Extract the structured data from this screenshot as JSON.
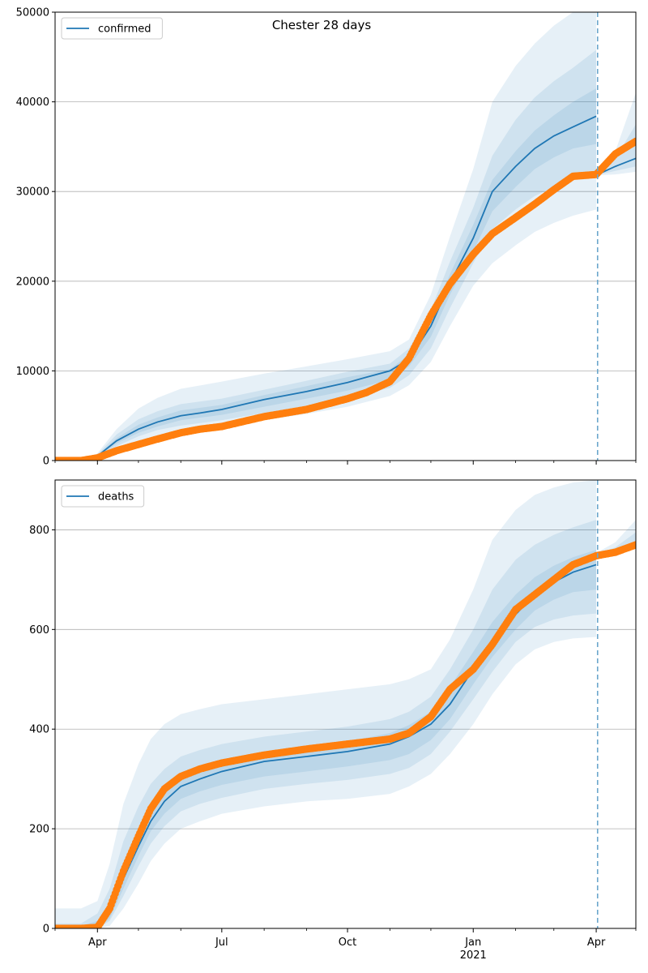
{
  "figure": {
    "title": "Chester 28 days"
  },
  "colors": {
    "model": "#1f77b4",
    "observed": "#ff7f0e",
    "band": "#1f77b4",
    "grid": "#b0b0b0",
    "cutoff": "#6aa6cc"
  },
  "chart_data": [
    {
      "type": "line",
      "legend": {
        "label": "confirmed",
        "placement": "top-left"
      },
      "grid": "y",
      "title": "Chester 28 days",
      "xlabel": "",
      "ylabel": "",
      "xlim": [
        "2020-03-01",
        "2021-04-30"
      ],
      "ylim": [
        0,
        50000
      ],
      "x_ticks": [
        {
          "date": "2020-04-01",
          "label": "Apr"
        },
        {
          "date": "2020-07-01",
          "label": "Jul"
        },
        {
          "date": "2020-10-01",
          "label": "Oct"
        },
        {
          "date": "2021-01-01",
          "label": "Jan",
          "sublabel": "2021"
        },
        {
          "date": "2021-04-01",
          "label": "Apr"
        }
      ],
      "y_ticks": [
        0,
        10000,
        20000,
        30000,
        40000,
        50000
      ],
      "y_tick_labels": [
        "0",
        "10000",
        "20000",
        "30000",
        "40000",
        "50000"
      ],
      "cutoff_date": "2021-04-02",
      "series": [
        {
          "name": "confirmed",
          "role": "model",
          "x": [
            "2020-03-01",
            "2020-03-20",
            "2020-04-01",
            "2020-04-15",
            "2020-05-01",
            "2020-05-15",
            "2020-06-01",
            "2020-06-15",
            "2020-07-01",
            "2020-08-01",
            "2020-09-01",
            "2020-10-01",
            "2020-10-15",
            "2020-11-01",
            "2020-11-15",
            "2020-12-01",
            "2020-12-15",
            "2021-01-01",
            "2021-01-15",
            "2021-02-01",
            "2021-02-15",
            "2021-03-01",
            "2021-03-15",
            "2021-04-01"
          ],
          "values": [
            0,
            0,
            500,
            2200,
            3500,
            4300,
            5000,
            5300,
            5700,
            6800,
            7700,
            8700,
            9300,
            10000,
            11300,
            15000,
            19800,
            24800,
            30000,
            32800,
            34800,
            36200,
            37200,
            38400
          ]
        },
        {
          "name": "forecast",
          "role": "model",
          "x": [
            "2021-04-02",
            "2021-04-15",
            "2021-04-30"
          ],
          "values": [
            31900,
            32800,
            33700
          ]
        },
        {
          "name": "observed confirmed",
          "role": "observed",
          "x": [
            "2020-03-01",
            "2020-03-20",
            "2020-04-01",
            "2020-04-15",
            "2020-05-01",
            "2020-05-15",
            "2020-06-01",
            "2020-06-15",
            "2020-07-01",
            "2020-08-01",
            "2020-09-01",
            "2020-10-01",
            "2020-10-15",
            "2020-11-01",
            "2020-11-15",
            "2020-12-01",
            "2020-12-15",
            "2021-01-01",
            "2021-01-15",
            "2021-02-01",
            "2021-02-15",
            "2021-03-01",
            "2021-03-15",
            "2021-04-01",
            "2021-04-15",
            "2021-04-30"
          ],
          "values": [
            0,
            0,
            300,
            1100,
            1800,
            2400,
            3100,
            3500,
            3800,
            4900,
            5700,
            6900,
            7600,
            8800,
            11400,
            16200,
            19700,
            23000,
            25300,
            27100,
            28600,
            30200,
            31700,
            31900,
            34200,
            35600
          ]
        }
      ],
      "bands": [
        {
          "name": "outer",
          "x": [
            "2020-03-01",
            "2020-03-20",
            "2020-04-01",
            "2020-04-15",
            "2020-05-01",
            "2020-05-15",
            "2020-06-01",
            "2020-07-01",
            "2020-08-01",
            "2020-09-01",
            "2020-10-01",
            "2020-11-01",
            "2020-11-15",
            "2020-12-01",
            "2020-12-15",
            "2021-01-01",
            "2021-01-15",
            "2021-02-01",
            "2021-02-15",
            "2021-03-01",
            "2021-03-15",
            "2021-04-01"
          ],
          "lower": [
            0,
            0,
            0,
            1200,
            2200,
            2800,
            3200,
            3800,
            4500,
            5200,
            6000,
            7200,
            8400,
            11000,
            15000,
            19500,
            22000,
            24000,
            25500,
            26500,
            27300,
            28000
          ],
          "upper": [
            0,
            0,
            800,
            3500,
            5800,
            7000,
            8000,
            8800,
            9700,
            10500,
            11300,
            12200,
            13500,
            18500,
            25000,
            32500,
            40000,
            44000,
            46500,
            48500,
            50000,
            51000
          ]
        },
        {
          "name": "middle",
          "x": [
            "2020-03-01",
            "2020-03-20",
            "2020-04-01",
            "2020-04-15",
            "2020-05-01",
            "2020-05-15",
            "2020-06-01",
            "2020-07-01",
            "2020-08-01",
            "2020-09-01",
            "2020-10-01",
            "2020-11-01",
            "2020-11-15",
            "2020-12-01",
            "2020-12-15",
            "2021-01-01",
            "2021-01-15",
            "2021-02-01",
            "2021-02-15",
            "2021-03-01",
            "2021-03-15",
            "2021-04-01"
          ],
          "lower": [
            0,
            0,
            200,
            1600,
            2700,
            3400,
            3900,
            4500,
            5300,
            6100,
            6900,
            8100,
            9500,
            12500,
            17000,
            22000,
            25800,
            28000,
            29500,
            30500,
            31300,
            32000
          ],
          "upper": [
            0,
            0,
            700,
            2900,
            4600,
            5500,
            6300,
            6900,
            7900,
            8900,
            9900,
            10800,
            12500,
            16800,
            22200,
            28200,
            34000,
            38000,
            40500,
            42300,
            43800,
            45800
          ]
        },
        {
          "name": "inner",
          "x": [
            "2020-03-01",
            "2020-03-20",
            "2020-04-01",
            "2020-04-15",
            "2020-05-01",
            "2020-05-15",
            "2020-06-01",
            "2020-07-01",
            "2020-08-01",
            "2020-09-01",
            "2020-10-01",
            "2020-11-01",
            "2020-11-15",
            "2020-12-01",
            "2020-12-15",
            "2021-01-01",
            "2021-01-15",
            "2021-02-01",
            "2021-02-15",
            "2021-03-01",
            "2021-03-15",
            "2021-04-01"
          ],
          "lower": [
            0,
            0,
            300,
            1900,
            3100,
            3800,
            4500,
            5100,
            6000,
            6900,
            7800,
            9000,
            10500,
            13800,
            18500,
            23300,
            27800,
            30500,
            32500,
            33800,
            34800,
            35300
          ],
          "upper": [
            0,
            0,
            600,
            2500,
            4000,
            4800,
            5600,
            6200,
            7300,
            8300,
            9300,
            10200,
            11800,
            15800,
            20800,
            26300,
            31300,
            34500,
            36800,
            38500,
            40000,
            41500
          ]
        },
        {
          "name": "forecast-outer",
          "x": [
            "2021-04-02",
            "2021-04-15",
            "2021-04-30"
          ],
          "lower": [
            31800,
            31900,
            32200
          ],
          "upper": [
            32000,
            34500,
            41000
          ]
        },
        {
          "name": "forecast-inner",
          "x": [
            "2021-04-02",
            "2021-04-15",
            "2021-04-30"
          ],
          "lower": [
            31850,
            32300,
            32800
          ],
          "upper": [
            31950,
            33700,
            37500
          ]
        }
      ]
    },
    {
      "type": "line",
      "legend": {
        "label": "deaths",
        "placement": "top-left"
      },
      "grid": "y",
      "xlabel": "",
      "ylabel": "",
      "xlim": [
        "2020-03-01",
        "2021-04-30"
      ],
      "ylim": [
        0,
        900
      ],
      "x_ticks": [
        {
          "date": "2020-04-01",
          "label": "Apr"
        },
        {
          "date": "2020-07-01",
          "label": "Jul"
        },
        {
          "date": "2020-10-01",
          "label": "Oct"
        },
        {
          "date": "2021-01-01",
          "label": "Jan",
          "sublabel": "2021"
        },
        {
          "date": "2021-04-01",
          "label": "Apr"
        }
      ],
      "y_ticks": [
        0,
        200,
        400,
        600,
        800
      ],
      "y_tick_labels": [
        "0",
        "200",
        "400",
        "600",
        "800"
      ],
      "cutoff_date": "2021-04-02",
      "series": [
        {
          "name": "deaths",
          "role": "model",
          "x": [
            "2020-03-01",
            "2020-03-20",
            "2020-04-01",
            "2020-04-10",
            "2020-04-20",
            "2020-05-01",
            "2020-05-10",
            "2020-05-20",
            "2020-06-01",
            "2020-06-15",
            "2020-07-01",
            "2020-08-01",
            "2020-09-01",
            "2020-10-01",
            "2020-11-01",
            "2020-11-15",
            "2020-12-01",
            "2020-12-15",
            "2021-01-01",
            "2021-01-15",
            "2021-02-01",
            "2021-02-15",
            "2021-03-01",
            "2021-03-15",
            "2021-04-01"
          ],
          "values": [
            0,
            0,
            0,
            30,
            100,
            165,
            215,
            255,
            285,
            300,
            315,
            335,
            345,
            355,
            370,
            385,
            410,
            450,
            520,
            570,
            630,
            670,
            695,
            715,
            730
          ]
        },
        {
          "name": "deaths forecast",
          "role": "model",
          "x": [
            "2021-04-02",
            "2021-04-15",
            "2021-04-30"
          ],
          "values": [
            750,
            755,
            770
          ]
        },
        {
          "name": "observed deaths",
          "role": "observed",
          "x": [
            "2020-03-01",
            "2020-03-20",
            "2020-04-01",
            "2020-04-10",
            "2020-04-20",
            "2020-05-01",
            "2020-05-10",
            "2020-05-20",
            "2020-06-01",
            "2020-06-15",
            "2020-07-01",
            "2020-08-01",
            "2020-09-01",
            "2020-10-01",
            "2020-11-01",
            "2020-11-15",
            "2020-12-01",
            "2020-12-15",
            "2021-01-01",
            "2021-01-15",
            "2021-02-01",
            "2021-02-15",
            "2021-03-01",
            "2021-03-15",
            "2021-04-01",
            "2021-04-15",
            "2021-04-30"
          ],
          "values": [
            0,
            0,
            2,
            40,
            115,
            185,
            240,
            280,
            305,
            320,
            332,
            348,
            360,
            370,
            380,
            392,
            425,
            480,
            520,
            570,
            640,
            670,
            700,
            730,
            748,
            755,
            770
          ]
        }
      ],
      "bands": [
        {
          "name": "outer",
          "x": [
            "2020-03-01",
            "2020-03-20",
            "2020-04-01",
            "2020-04-10",
            "2020-04-20",
            "2020-05-01",
            "2020-05-10",
            "2020-05-20",
            "2020-06-01",
            "2020-06-15",
            "2020-07-01",
            "2020-08-01",
            "2020-09-01",
            "2020-10-01",
            "2020-11-01",
            "2020-11-15",
            "2020-12-01",
            "2020-12-15",
            "2021-01-01",
            "2021-01-15",
            "2021-02-01",
            "2021-02-15",
            "2021-03-01",
            "2021-03-15",
            "2021-04-01"
          ],
          "lower": [
            0,
            0,
            0,
            5,
            40,
            90,
            135,
            170,
            200,
            215,
            230,
            245,
            255,
            260,
            270,
            285,
            310,
            350,
            410,
            470,
            530,
            560,
            575,
            582,
            585
          ],
          "upper": [
            40,
            40,
            55,
            130,
            250,
            330,
            380,
            410,
            430,
            440,
            450,
            460,
            470,
            480,
            490,
            500,
            520,
            580,
            680,
            780,
            840,
            870,
            885,
            895,
            900
          ]
        },
        {
          "name": "middle",
          "x": [
            "2020-03-01",
            "2020-03-20",
            "2020-04-01",
            "2020-04-10",
            "2020-04-20",
            "2020-05-01",
            "2020-05-10",
            "2020-05-20",
            "2020-06-01",
            "2020-06-15",
            "2020-07-01",
            "2020-08-01",
            "2020-09-01",
            "2020-10-01",
            "2020-11-01",
            "2020-11-15",
            "2020-12-01",
            "2020-12-15",
            "2021-01-01",
            "2021-01-15",
            "2021-02-01",
            "2021-02-15",
            "2021-03-01",
            "2021-03-15",
            "2021-04-01"
          ],
          "lower": [
            0,
            0,
            0,
            15,
            65,
            125,
            170,
            205,
            235,
            250,
            262,
            280,
            290,
            298,
            310,
            322,
            350,
            395,
            460,
            515,
            575,
            605,
            620,
            628,
            632
          ],
          "upper": [
            10,
            10,
            30,
            80,
            175,
            245,
            290,
            320,
            345,
            358,
            370,
            385,
            395,
            405,
            420,
            435,
            465,
            520,
            600,
            680,
            740,
            770,
            790,
            805,
            820
          ]
        },
        {
          "name": "inner",
          "x": [
            "2020-03-01",
            "2020-03-20",
            "2020-04-01",
            "2020-04-10",
            "2020-04-20",
            "2020-05-01",
            "2020-05-10",
            "2020-05-20",
            "2020-06-01",
            "2020-06-15",
            "2020-07-01",
            "2020-08-01",
            "2020-09-01",
            "2020-10-01",
            "2020-11-01",
            "2020-11-15",
            "2020-12-01",
            "2020-12-15",
            "2021-01-01",
            "2021-01-15",
            "2021-02-01",
            "2021-02-15",
            "2021-03-01",
            "2021-03-15",
            "2021-04-01"
          ],
          "lower": [
            0,
            0,
            0,
            20,
            80,
            145,
            195,
            230,
            260,
            275,
            288,
            305,
            315,
            325,
            338,
            350,
            378,
            420,
            490,
            545,
            600,
            638,
            660,
            675,
            680
          ],
          "upper": [
            5,
            5,
            15,
            45,
            125,
            190,
            240,
            275,
            305,
            320,
            332,
            355,
            365,
            375,
            392,
            408,
            435,
            485,
            555,
            615,
            670,
            705,
            728,
            745,
            760
          ]
        },
        {
          "name": "forecast-outer",
          "x": [
            "2021-04-02",
            "2021-04-15",
            "2021-04-30"
          ],
          "lower": [
            745,
            752,
            765
          ],
          "upper": [
            755,
            775,
            820
          ]
        },
        {
          "name": "forecast-inner",
          "x": [
            "2021-04-02",
            "2021-04-15",
            "2021-04-30"
          ],
          "lower": [
            748,
            754,
            768
          ],
          "upper": [
            752,
            765,
            795
          ]
        }
      ]
    }
  ]
}
